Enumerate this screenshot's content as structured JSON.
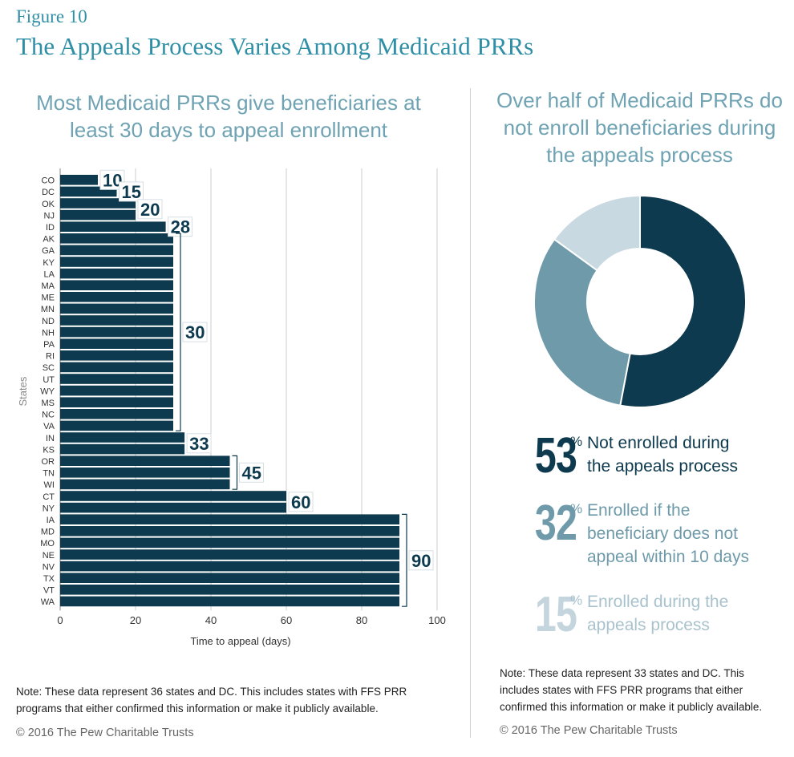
{
  "figure_label": "Figure 10",
  "figure_title": "The Appeals Process Varies Among Medicaid PRRs",
  "left_subtitle": "Most Medicaid PRRs give beneficiaries at least 30 days to appeal enrollment",
  "right_subtitle": "Over half of Medicaid PRRs do not enroll beneficiaries during the appeals process",
  "colors": {
    "title": "#2f8fa6",
    "subtitle": "#6fa3b4",
    "bar": "#0d3a4e",
    "grid": "#cccccc",
    "dark": "#0d3a4e",
    "mid": "#6e9aaa",
    "light": "#c9d9e1"
  },
  "chart_data": [
    {
      "type": "bar",
      "orientation": "horizontal",
      "categories": [
        "CO",
        "DC",
        "OK",
        "NJ",
        "ID",
        "AK",
        "GA",
        "KY",
        "LA",
        "MA",
        "ME",
        "MN",
        "ND",
        "NH",
        "PA",
        "RI",
        "SC",
        "UT",
        "WY",
        "MS",
        "NC",
        "VA",
        "IN",
        "KS",
        "OR",
        "TN",
        "WI",
        "CT",
        "NY",
        "IA",
        "MD",
        "MO",
        "NE",
        "NV",
        "TX",
        "VT",
        "WA"
      ],
      "values": [
        10,
        15,
        20,
        20,
        28,
        30,
        30,
        30,
        30,
        30,
        30,
        30,
        30,
        30,
        30,
        30,
        30,
        30,
        30,
        30,
        30,
        30,
        33,
        33,
        45,
        45,
        45,
        60,
        60,
        90,
        90,
        90,
        90,
        90,
        90,
        90,
        90
      ],
      "xlabel": "Time to appeal (days)",
      "ylabel": "States",
      "xlim": [
        0,
        100
      ],
      "xticks": [
        "0",
        "20",
        "40",
        "60",
        "80",
        "100"
      ],
      "grid": true,
      "annotations": [
        {
          "label": "10",
          "value": 10,
          "rows": [
            "CO",
            "CO"
          ]
        },
        {
          "label": "15",
          "value": 15,
          "rows": [
            "DC",
            "DC"
          ]
        },
        {
          "label": "20",
          "value": 20,
          "rows": [
            "OK",
            "NJ"
          ]
        },
        {
          "label": "28",
          "value": 28,
          "rows": [
            "ID",
            "ID"
          ]
        },
        {
          "label": "30",
          "value": 30,
          "rows": [
            "AK",
            "VA"
          ]
        },
        {
          "label": "33",
          "value": 33,
          "rows": [
            "IN",
            "KS"
          ]
        },
        {
          "label": "45",
          "value": 45,
          "rows": [
            "OR",
            "WI"
          ]
        },
        {
          "label": "60",
          "value": 60,
          "rows": [
            "CT",
            "NY"
          ]
        },
        {
          "label": "90",
          "value": 90,
          "rows": [
            "IA",
            "WA"
          ]
        }
      ]
    },
    {
      "type": "pie",
      "donut": true,
      "slices": [
        {
          "label": "Not enrolled during the appeals process",
          "value": 53,
          "color": "#0d3a4e"
        },
        {
          "label": "Enrolled if the beneficiary does not appeal within 10 days",
          "value": 32,
          "color": "#6e9aaa"
        },
        {
          "label": "Enrolled during the appeals process",
          "value": 15,
          "color": "#c9d9e1"
        }
      ]
    }
  ],
  "stats": [
    {
      "num": "53",
      "pct": "%",
      "line1": "Not enrolled during",
      "line2": "the appeals process",
      "line3": ""
    },
    {
      "num": "32",
      "pct": "%",
      "line1": "Enrolled if the",
      "line2": "beneficiary does not",
      "line3": "appeal within 10 days"
    },
    {
      "num": "15",
      "pct": "%",
      "line1": "Enrolled during the",
      "line2": "appeals process",
      "line3": ""
    }
  ],
  "left_note": {
    "line1": "Note: These data represent 36 states and DC. This includes states with FFS PRR",
    "line2": "programs that either confirmed this information or make it publicly available."
  },
  "right_note": {
    "line1": "Note: These data represent 33 states and DC. This",
    "line2": "includes states with FFS PRR programs that either",
    "line3": "confirmed this information or make it publicly available."
  },
  "copyright_left": "© 2016 The Pew Charitable Trusts",
  "copyright_right": "© 2016 The Pew Charitable Trusts"
}
